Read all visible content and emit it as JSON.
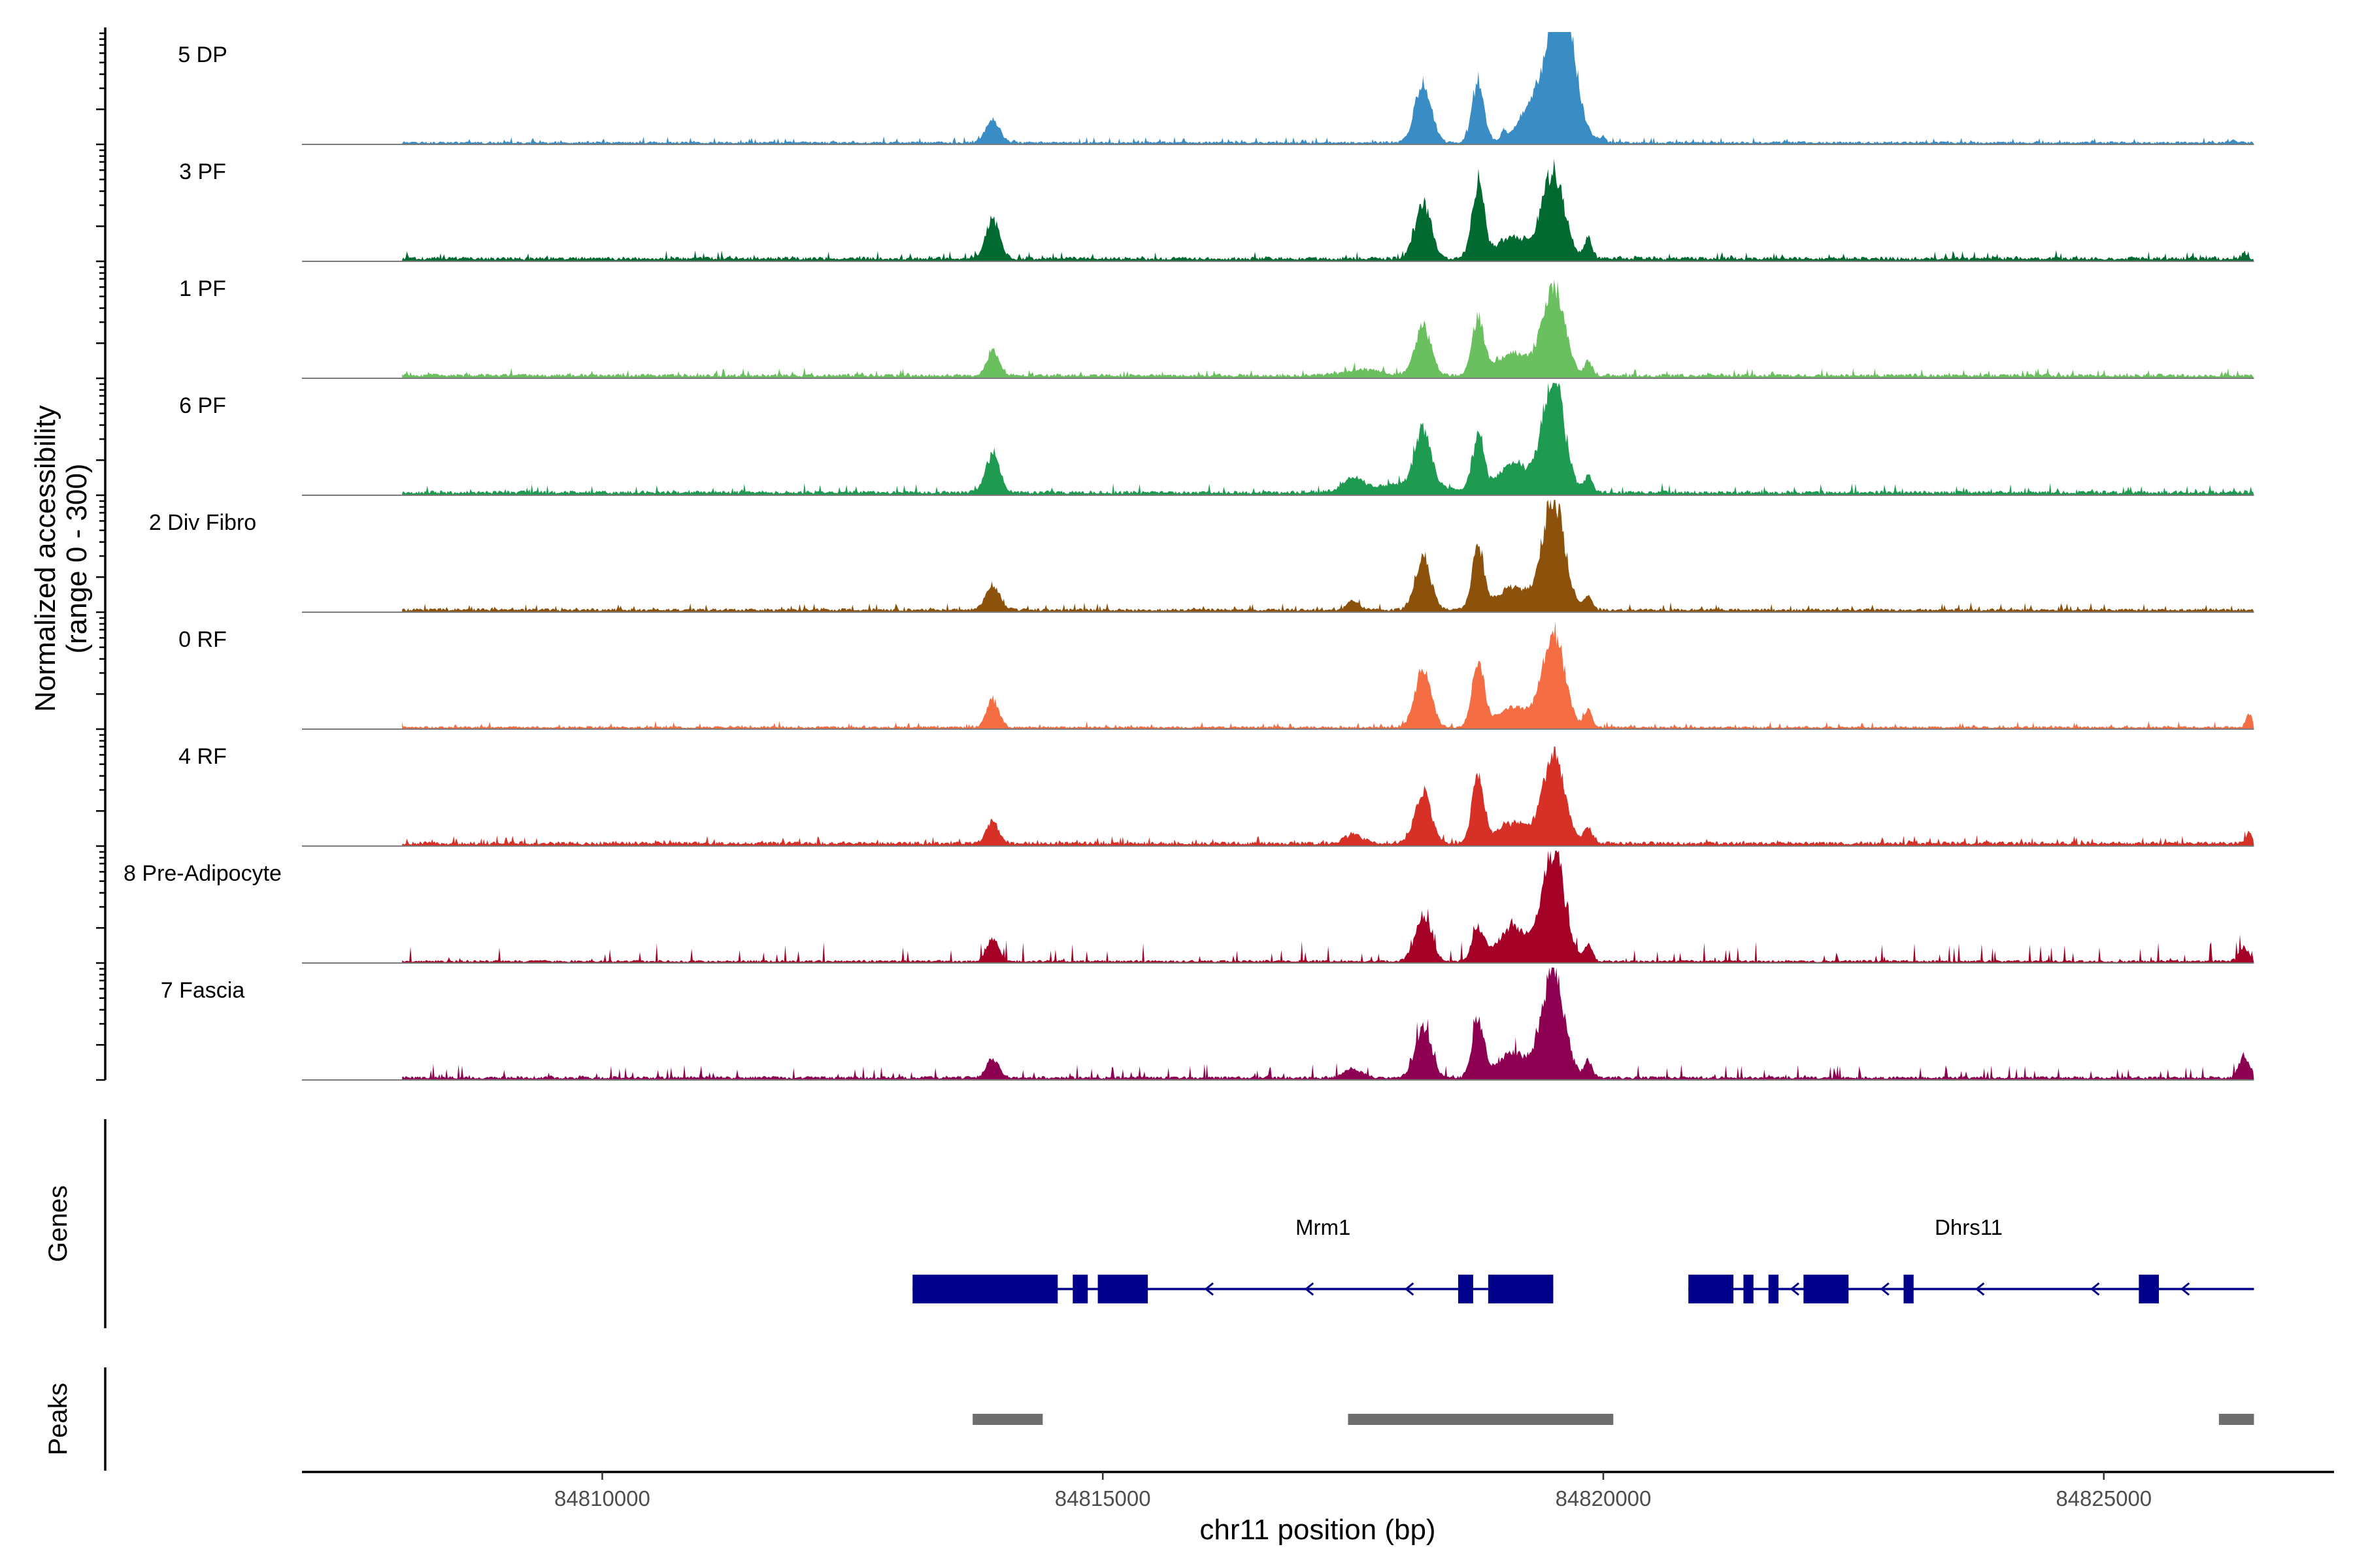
{
  "chart_data": {
    "type": "area",
    "title": "",
    "ylabel_line1": "Normalized accessibility",
    "ylabel_line2": "(range 0 - 300)",
    "xlabel": "chr11 position (bp)",
    "y_range": [
      0,
      300
    ],
    "x_range": [
      84807000,
      84827300
    ],
    "x_ticks": [
      84810000,
      84815000,
      84820000,
      84825000
    ],
    "x_tick_labels": [
      "84810000",
      "84815000",
      "84820000",
      "84825000"
    ],
    "data_start": 84808000,
    "data_end": 84826500,
    "tracks": [
      {
        "name": "5 DP",
        "color": "#3a8cc4",
        "bg": 0.02,
        "noise": 0.015,
        "peaks": [
          [
            84813900,
            70,
            0.2
          ],
          [
            84818200,
            80,
            0.55
          ],
          [
            84818750,
            60,
            0.55
          ],
          [
            84819000,
            20,
            0.08
          ],
          [
            84819450,
            200,
            0.55
          ],
          [
            84819600,
            110,
            0.95
          ],
          [
            84820000,
            20,
            0.05
          ],
          [
            84826300,
            20,
            0.03
          ]
        ]
      },
      {
        "name": "3 PF",
        "color": "#006a31",
        "bg": 0.03,
        "noise": 0.02,
        "peaks": [
          [
            84813900,
            70,
            0.35
          ],
          [
            84818200,
            80,
            0.5
          ],
          [
            84818750,
            60,
            0.68
          ],
          [
            84819100,
            150,
            0.2
          ],
          [
            84819500,
            110,
            0.78
          ],
          [
            84819850,
            40,
            0.18
          ],
          [
            84826400,
            30,
            0.04
          ]
        ]
      },
      {
        "name": "1 PF",
        "color": "#6abf5e",
        "bg": 0.03,
        "noise": 0.02,
        "peaks": [
          [
            84813900,
            60,
            0.22
          ],
          [
            84818200,
            80,
            0.45
          ],
          [
            84818750,
            60,
            0.5
          ],
          [
            84819100,
            150,
            0.2
          ],
          [
            84819500,
            110,
            0.78
          ],
          [
            84819850,
            40,
            0.12
          ],
          [
            84817600,
            200,
            0.05
          ]
        ]
      },
      {
        "name": "6 PF",
        "color": "#1e9b51",
        "bg": 0.03,
        "noise": 0.025,
        "peaks": [
          [
            84813900,
            70,
            0.35
          ],
          [
            84817500,
            90,
            0.1
          ],
          [
            84818200,
            80,
            0.52
          ],
          [
            84818750,
            60,
            0.45
          ],
          [
            84819100,
            150,
            0.25
          ],
          [
            84819500,
            110,
            1.0
          ],
          [
            84819850,
            40,
            0.15
          ],
          [
            84818000,
            400,
            0.07
          ]
        ]
      },
      {
        "name": "2 Div Fibro",
        "color": "#8c510a",
        "bg": 0.025,
        "noise": 0.02,
        "peaks": [
          [
            84813900,
            70,
            0.22
          ],
          [
            84817500,
            60,
            0.08
          ],
          [
            84818200,
            80,
            0.45
          ],
          [
            84818750,
            60,
            0.55
          ],
          [
            84819100,
            150,
            0.2
          ],
          [
            84819500,
            110,
            1.0
          ],
          [
            84819850,
            40,
            0.12
          ]
        ]
      },
      {
        "name": "0 RF",
        "color": "#f46d43",
        "bg": 0.02,
        "noise": 0.015,
        "peaks": [
          [
            84813900,
            60,
            0.25
          ],
          [
            84818200,
            80,
            0.52
          ],
          [
            84818750,
            60,
            0.6
          ],
          [
            84819100,
            150,
            0.18
          ],
          [
            84819500,
            110,
            0.85
          ],
          [
            84819850,
            40,
            0.15
          ],
          [
            84826450,
            30,
            0.12
          ]
        ]
      },
      {
        "name": "4 RF",
        "color": "#d73027",
        "bg": 0.03,
        "noise": 0.02,
        "peaks": [
          [
            84813900,
            60,
            0.2
          ],
          [
            84817500,
            90,
            0.08
          ],
          [
            84818200,
            80,
            0.45
          ],
          [
            84818750,
            60,
            0.6
          ],
          [
            84819100,
            150,
            0.18
          ],
          [
            84819500,
            110,
            0.78
          ],
          [
            84819850,
            40,
            0.15
          ],
          [
            84826450,
            30,
            0.1
          ]
        ]
      },
      {
        "name": "8 Pre-Adipocyte",
        "color": "#a50026",
        "bg": 0.02,
        "noise": 0.06,
        "peaks": [
          [
            84813900,
            60,
            0.2
          ],
          [
            84818200,
            80,
            0.4
          ],
          [
            84818750,
            60,
            0.28
          ],
          [
            84819100,
            150,
            0.3
          ],
          [
            84819500,
            110,
            1.0
          ],
          [
            84819850,
            40,
            0.15
          ],
          [
            84826400,
            50,
            0.12
          ]
        ]
      },
      {
        "name": "7 Fascia",
        "color": "#8e0152",
        "bg": 0.025,
        "noise": 0.04,
        "peaks": [
          [
            84813900,
            60,
            0.18
          ],
          [
            84817500,
            90,
            0.08
          ],
          [
            84818200,
            80,
            0.45
          ],
          [
            84818750,
            60,
            0.5
          ],
          [
            84819100,
            150,
            0.22
          ],
          [
            84819500,
            110,
            0.95
          ],
          [
            84819850,
            40,
            0.15
          ],
          [
            84826400,
            50,
            0.2
          ]
        ]
      }
    ],
    "genes_panel_title": "Genes",
    "peaks_panel_title": "Peaks",
    "gene_color": "#00008b",
    "genes": [
      {
        "name": "Mrm1",
        "start": 84813100,
        "end": 84819500,
        "label_pos": 84817200,
        "exons": [
          [
            84813100,
            84814550
          ],
          [
            84814700,
            84814850
          ],
          [
            84814950,
            84815450
          ],
          [
            84818550,
            84818700
          ],
          [
            84818850,
            84819500
          ]
        ],
        "arrows": [
          84816050,
          84817050,
          84818050
        ]
      },
      {
        "name": "Dhrs11",
        "start": 84820850,
        "end": 84826500,
        "label_pos": 84823650,
        "exons": [
          [
            84820850,
            84821300
          ],
          [
            84821400,
            84821500
          ],
          [
            84821650,
            84821750
          ],
          [
            84822000,
            84822450
          ],
          [
            84823000,
            84823100
          ],
          [
            84825350,
            84825550
          ]
        ],
        "arrows": [
          84821900,
          84822800,
          84823750,
          84824900,
          84825800
        ]
      }
    ],
    "peaks_color": "#6e6e6e",
    "peaks": [
      [
        84813700,
        84814400
      ],
      [
        84817450,
        84820100
      ],
      [
        84826150,
        84826500
      ]
    ]
  }
}
